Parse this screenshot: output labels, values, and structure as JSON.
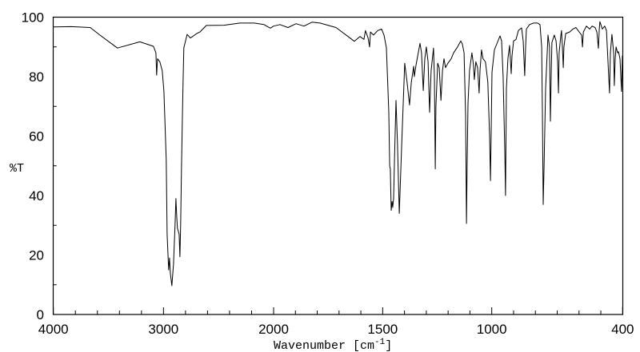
{
  "chart_data": {
    "type": "line",
    "title": "",
    "xlabel": "Wavenumber [cm",
    "xlabel_sup": "-1",
    "xlabel_close": "]",
    "ylabel": "%T",
    "xlim": [
      4000,
      400
    ],
    "ylim": [
      0,
      100
    ],
    "x_scale_note": "expanded 2x below 2000",
    "x_break": 2000,
    "x_ticks": [
      4000,
      3000,
      2000,
      1500,
      1000,
      400
    ],
    "x_tick_labels": [
      "4000",
      "3000",
      "2000",
      "1500",
      "1000",
      "400"
    ],
    "y_ticks": [
      0,
      20,
      40,
      60,
      80,
      100
    ],
    "y_tick_labels": [
      "0",
      "20",
      "40",
      "60",
      "80",
      "100"
    ],
    "grid": false,
    "line_color": "#000000",
    "series": [
      {
        "name": "%T",
        "points": [
          [
            4000,
            96.7
          ],
          [
            3833,
            96.8
          ],
          [
            3665,
            96.5
          ],
          [
            3578,
            94
          ],
          [
            3418,
            89.6
          ],
          [
            3215,
            91.7
          ],
          [
            3091,
            90.2
          ],
          [
            3069,
            88
          ],
          [
            3062,
            80.5
          ],
          [
            3054,
            86
          ],
          [
            3033,
            85
          ],
          [
            3011,
            82
          ],
          [
            2996,
            75
          ],
          [
            2975,
            52
          ],
          [
            2967,
            27
          ],
          [
            2953,
            15
          ],
          [
            2945,
            19
          ],
          [
            2938,
            14
          ],
          [
            2924,
            9.7
          ],
          [
            2909,
            17
          ],
          [
            2895,
            30
          ],
          [
            2887,
            39
          ],
          [
            2880,
            33
          ],
          [
            2873,
            29
          ],
          [
            2858,
            27
          ],
          [
            2851,
            19.4
          ],
          [
            2844,
            30
          ],
          [
            2836,
            50
          ],
          [
            2829,
            65
          ],
          [
            2822,
            79
          ],
          [
            2815,
            89.7
          ],
          [
            2785,
            94.2
          ],
          [
            2756,
            93
          ],
          [
            2735,
            93.5
          ],
          [
            2698,
            94.5
          ],
          [
            2669,
            95
          ],
          [
            2611,
            97.2
          ],
          [
            2451,
            97.3
          ],
          [
            2305,
            98
          ],
          [
            2175,
            98
          ],
          [
            2087,
            97.5
          ],
          [
            2029,
            96.3
          ],
          [
            2000,
            97
          ],
          [
            1971,
            97.5
          ],
          [
            1934,
            96.5
          ],
          [
            1897,
            97.8
          ],
          [
            1861,
            97
          ],
          [
            1824,
            98.3
          ],
          [
            1787,
            98
          ],
          [
            1714,
            96.5
          ],
          [
            1659,
            93.5
          ],
          [
            1630,
            91.9
          ],
          [
            1604,
            93.5
          ],
          [
            1586,
            92.5
          ],
          [
            1579,
            95.5
          ],
          [
            1567,
            93
          ],
          [
            1560,
            90
          ],
          [
            1556,
            95
          ],
          [
            1542,
            94
          ],
          [
            1523,
            95.5
          ],
          [
            1505,
            96
          ],
          [
            1494,
            94
          ],
          [
            1483,
            89.7
          ],
          [
            1472,
            68
          ],
          [
            1468,
            50
          ],
          [
            1465,
            49
          ],
          [
            1461,
            35
          ],
          [
            1457,
            38
          ],
          [
            1454,
            36
          ],
          [
            1450,
            39
          ],
          [
            1446,
            52
          ],
          [
            1439,
            72
          ],
          [
            1432,
            57
          ],
          [
            1424,
            34
          ],
          [
            1413,
            57
          ],
          [
            1399,
            84.5
          ],
          [
            1388,
            78
          ],
          [
            1377,
            70.5
          ],
          [
            1369,
            78
          ],
          [
            1358,
            83.5
          ],
          [
            1355,
            80
          ],
          [
            1347,
            84
          ],
          [
            1329,
            91.2
          ],
          [
            1322,
            88
          ],
          [
            1314,
            75.3
          ],
          [
            1307,
            86
          ],
          [
            1300,
            90
          ],
          [
            1292,
            85
          ],
          [
            1285,
            68
          ],
          [
            1278,
            82
          ],
          [
            1267,
            89.6
          ],
          [
            1263,
            80
          ],
          [
            1259,
            49
          ],
          [
            1256,
            70
          ],
          [
            1248,
            84.5
          ],
          [
            1241,
            83
          ],
          [
            1233,
            72
          ],
          [
            1226,
            82
          ],
          [
            1219,
            86
          ],
          [
            1212,
            83
          ],
          [
            1201,
            84.5
          ],
          [
            1186,
            86
          ],
          [
            1175,
            88
          ],
          [
            1157,
            90
          ],
          [
            1142,
            92
          ],
          [
            1135,
            91
          ],
          [
            1127,
            88
          ],
          [
            1120,
            67
          ],
          [
            1116,
            30.6
          ],
          [
            1113,
            50
          ],
          [
            1109,
            71
          ],
          [
            1102,
            82
          ],
          [
            1091,
            88
          ],
          [
            1084,
            84
          ],
          [
            1080,
            79
          ],
          [
            1073,
            85
          ],
          [
            1065,
            83
          ],
          [
            1058,
            74.5
          ],
          [
            1054,
            82
          ],
          [
            1047,
            89
          ],
          [
            1040,
            86
          ],
          [
            1029,
            85
          ],
          [
            1021,
            80
          ],
          [
            1018,
            78
          ],
          [
            1010,
            60
          ],
          [
            1006,
            45
          ],
          [
            1003,
            60
          ],
          [
            999,
            81.5
          ],
          [
            988,
            89
          ],
          [
            977,
            91
          ],
          [
            962,
            93.7
          ],
          [
            955,
            92
          ],
          [
            948,
            80
          ],
          [
            940,
            55
          ],
          [
            937,
            40
          ],
          [
            933,
            76
          ],
          [
            926,
            86
          ],
          [
            918,
            90.5
          ],
          [
            911,
            81
          ],
          [
            907,
            87
          ],
          [
            900,
            92
          ],
          [
            889,
            92.5
          ],
          [
            878,
            95.5
          ],
          [
            863,
            96.4
          ],
          [
            856,
            92
          ],
          [
            849,
            80.3
          ],
          [
            845,
            90
          ],
          [
            841,
            96
          ],
          [
            827,
            97.5
          ],
          [
            808,
            98
          ],
          [
            790,
            98
          ],
          [
            779,
            97.5
          ],
          [
            771,
            90
          ],
          [
            768,
            68
          ],
          [
            764,
            37
          ],
          [
            760,
            50
          ],
          [
            753,
            76
          ],
          [
            746,
            88
          ],
          [
            742,
            94
          ],
          [
            735,
            90
          ],
          [
            731,
            65
          ],
          [
            727,
            82
          ],
          [
            724,
            91.5
          ],
          [
            713,
            94
          ],
          [
            705,
            92
          ],
          [
            698,
            85
          ],
          [
            694,
            74.5
          ],
          [
            691,
            88
          ],
          [
            683,
            94
          ],
          [
            680,
            95.5
          ],
          [
            676,
            90
          ],
          [
            672,
            83
          ],
          [
            669,
            90
          ],
          [
            661,
            94.5
          ],
          [
            643,
            95
          ],
          [
            628,
            96
          ],
          [
            614,
            96.5
          ],
          [
            599,
            95
          ],
          [
            588,
            94
          ],
          [
            584,
            90
          ],
          [
            580,
            95
          ],
          [
            566,
            97
          ],
          [
            551,
            96
          ],
          [
            540,
            97
          ],
          [
            526,
            96.5
          ],
          [
            518,
            95
          ],
          [
            511,
            89.5
          ],
          [
            507,
            96
          ],
          [
            504,
            98.5
          ],
          [
            493,
            96
          ],
          [
            482,
            97
          ],
          [
            474,
            95.5
          ],
          [
            467,
            85
          ],
          [
            460,
            74.5
          ],
          [
            456,
            88
          ],
          [
            449,
            94.2
          ],
          [
            441,
            88
          ],
          [
            438,
            77
          ],
          [
            434,
            86
          ],
          [
            430,
            90
          ],
          [
            423,
            88
          ],
          [
            419,
            88.4
          ],
          [
            412,
            86
          ],
          [
            405,
            75
          ],
          [
            401,
            87
          ]
        ]
      }
    ]
  }
}
